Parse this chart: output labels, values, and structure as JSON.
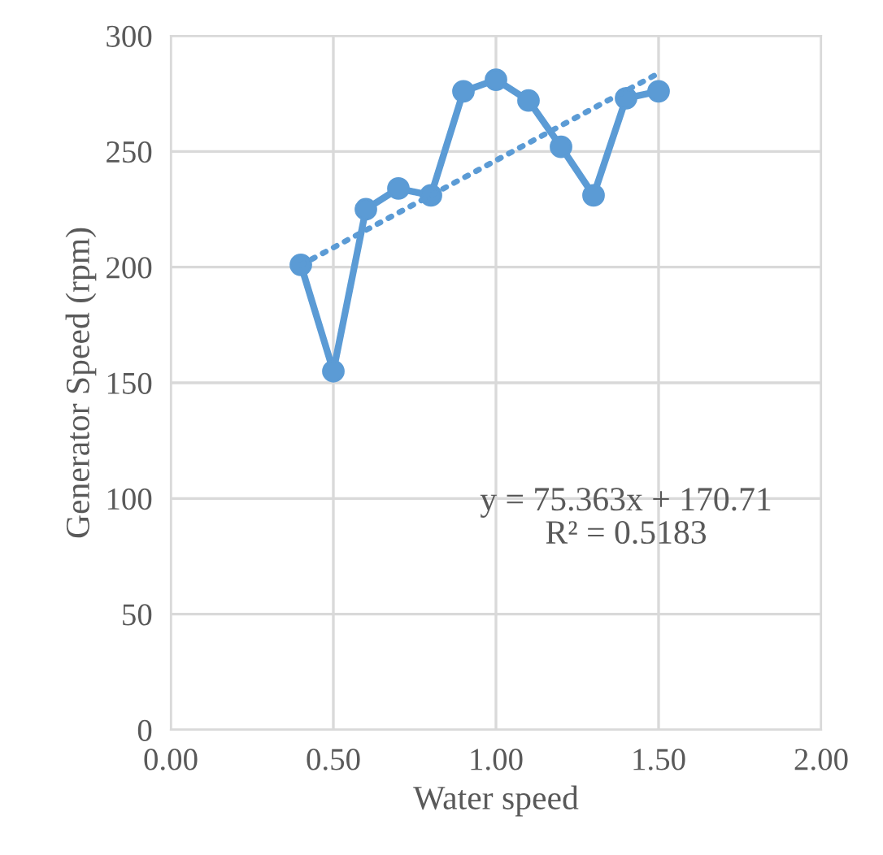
{
  "chart_data": {
    "type": "line",
    "xlabel": "Water speed",
    "ylabel": "Generator Speed (rpm)",
    "xlim": [
      0,
      2
    ],
    "xticks": [
      {
        "value": 0,
        "label": "0.00"
      },
      {
        "value": 0.5,
        "label": "0.50"
      },
      {
        "value": 1,
        "label": "1.00"
      },
      {
        "value": 1.5,
        "label": "1.50"
      },
      {
        "value": 2,
        "label": "2.00"
      }
    ],
    "ylim": [
      0,
      300
    ],
    "yticks": [
      0,
      50,
      100,
      150,
      200,
      250,
      300
    ],
    "grid": true,
    "legend": false,
    "x": [
      0.4,
      0.5,
      0.6,
      0.7,
      0.8,
      0.9,
      1.0,
      1.1,
      1.2,
      1.3,
      1.4,
      1.5
    ],
    "series": [
      {
        "color": "#5b9bd5",
        "marker": "circle",
        "line_style": "solid",
        "values": [
          201,
          155,
          225,
          234,
          231,
          276,
          281,
          272,
          252,
          231,
          273,
          276
        ]
      },
      {
        "color": "#5b9bd5",
        "marker": "none",
        "line_style": "dotted",
        "x": [
          0.4,
          1.5
        ],
        "values": [
          200.9,
          283.8
        ]
      }
    ],
    "annotations": [
      "y = 75.363x + 170.71\nR² = 0.5183"
    ]
  }
}
